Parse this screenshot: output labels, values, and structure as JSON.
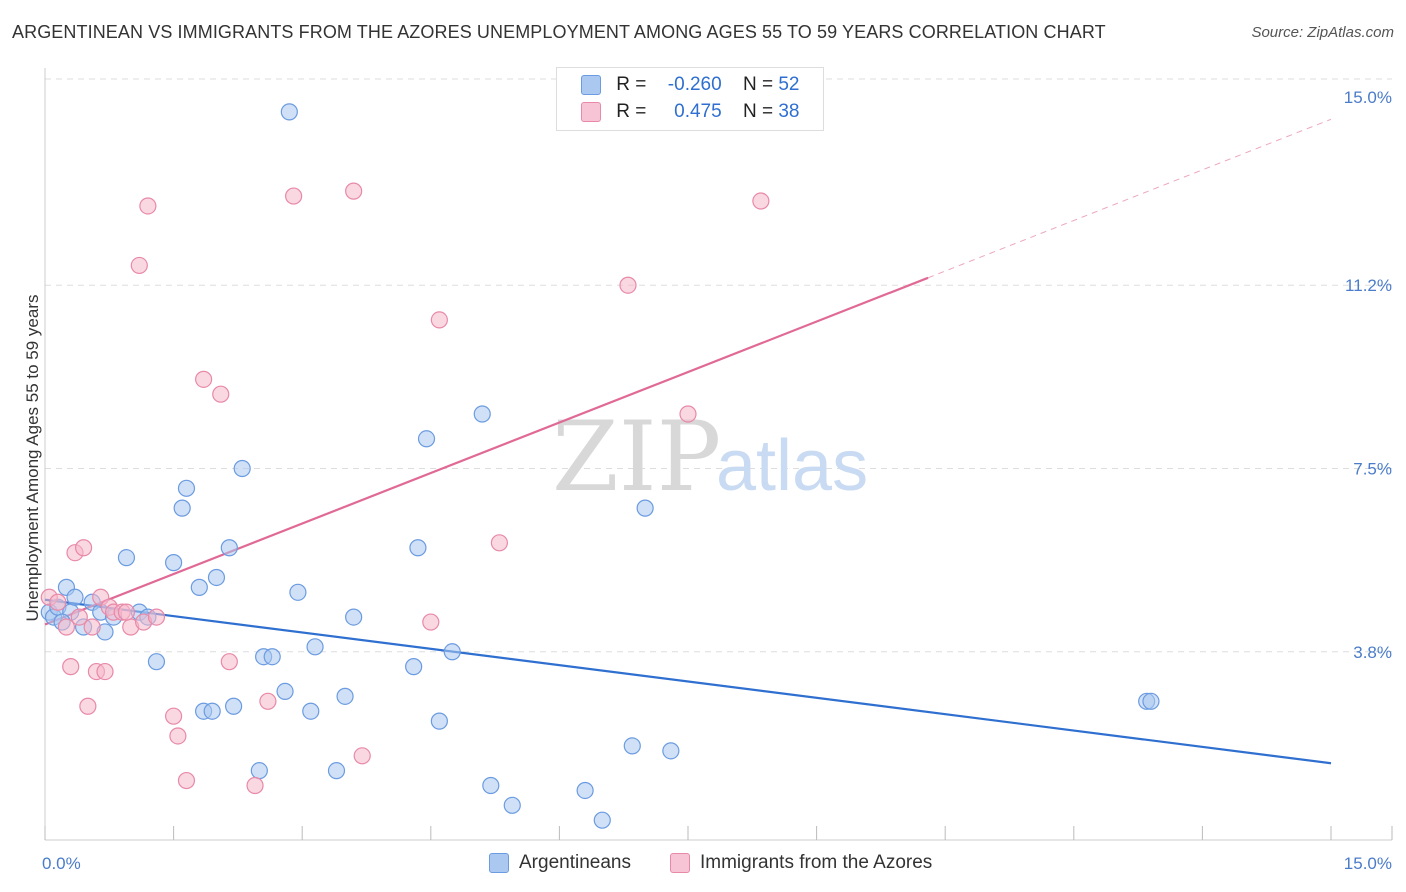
{
  "title": "ARGENTINEAN VS IMMIGRANTS FROM THE AZORES UNEMPLOYMENT AMONG AGES 55 TO 59 YEARS CORRELATION CHART",
  "source": "Source: ZipAtlas.com",
  "watermark": {
    "zip": "ZIP",
    "atlas": "atlas"
  },
  "legend_top": {
    "rows": [
      {
        "r_label": "R =",
        "r_value": "-0.260",
        "n_label": "N =",
        "n_value": "52"
      },
      {
        "r_label": "R =",
        "r_value": "0.475",
        "n_label": "N =",
        "n_value": "38"
      }
    ]
  },
  "legend_bottom": {
    "items": [
      "Argentineans",
      "Immigrants from the Azores"
    ]
  },
  "colors": {
    "blue_fill": "#aac8f0",
    "blue_stroke": "#6b9be0",
    "blue_line": "#2f6fd0",
    "pink_fill": "#f6b8cb",
    "pink_stroke": "#e889a8",
    "pink_line": "#e06a95",
    "grid": "#dddddd",
    "tick_text": "#4a7cc9"
  },
  "chart_data": {
    "type": "scatter",
    "title": "ARGENTINEAN VS IMMIGRANTS FROM THE AZORES UNEMPLOYMENT AMONG AGES 55 TO 59 YEARS CORRELATION CHART",
    "xlabel": "",
    "ylabel": "Unemployment Among Ages 55 to 59 years",
    "xlim": [
      0,
      15
    ],
    "ylim": [
      0,
      15.5
    ],
    "x_tick_labels": [
      {
        "value": 0,
        "label": "0.0%"
      },
      {
        "value": 15,
        "label": "15.0%"
      }
    ],
    "y_tick_labels": [
      {
        "value": 3.8,
        "label": "3.8%"
      },
      {
        "value": 7.5,
        "label": "7.5%"
      },
      {
        "value": 11.2,
        "label": "11.2%"
      },
      {
        "value": 15.0,
        "label": "15.0%"
      }
    ],
    "series": [
      {
        "name": "Argentineans",
        "color": "blue",
        "r": -0.26,
        "n": 52,
        "points": [
          [
            0.05,
            4.6
          ],
          [
            0.1,
            4.5
          ],
          [
            0.15,
            4.7
          ],
          [
            0.25,
            5.1
          ],
          [
            0.3,
            4.6
          ],
          [
            0.45,
            4.3
          ],
          [
            0.55,
            4.8
          ],
          [
            0.65,
            4.6
          ],
          [
            0.7,
            4.2
          ],
          [
            0.8,
            4.5
          ],
          [
            0.95,
            5.7
          ],
          [
            1.1,
            4.6
          ],
          [
            1.2,
            4.5
          ],
          [
            1.3,
            3.6
          ],
          [
            1.5,
            5.6
          ],
          [
            1.6,
            6.7
          ],
          [
            1.65,
            7.1
          ],
          [
            1.8,
            5.1
          ],
          [
            1.85,
            2.6
          ],
          [
            1.95,
            2.6
          ],
          [
            2.0,
            5.3
          ],
          [
            2.15,
            5.9
          ],
          [
            2.2,
            2.7
          ],
          [
            2.3,
            7.5
          ],
          [
            2.5,
            1.4
          ],
          [
            2.55,
            3.7
          ],
          [
            2.65,
            3.7
          ],
          [
            2.8,
            3.0
          ],
          [
            2.85,
            14.7
          ],
          [
            2.95,
            5.0
          ],
          [
            3.1,
            2.6
          ],
          [
            3.15,
            3.9
          ],
          [
            3.4,
            1.4
          ],
          [
            3.5,
            2.9
          ],
          [
            3.6,
            4.5
          ],
          [
            4.3,
            3.5
          ],
          [
            4.35,
            5.9
          ],
          [
            4.45,
            8.1
          ],
          [
            4.6,
            2.4
          ],
          [
            4.75,
            3.8
          ],
          [
            5.1,
            8.6
          ],
          [
            5.2,
            1.1
          ],
          [
            5.45,
            0.7
          ],
          [
            6.3,
            1.0
          ],
          [
            6.5,
            0.4
          ],
          [
            6.85,
            1.9
          ],
          [
            7.0,
            6.7
          ],
          [
            7.3,
            1.8
          ],
          [
            12.85,
            2.8
          ],
          [
            12.9,
            2.8
          ],
          [
            0.35,
            4.9
          ],
          [
            0.2,
            4.4
          ]
        ]
      },
      {
        "name": "Immigrants from the Azores",
        "color": "pink",
        "r": 0.475,
        "n": 38,
        "points": [
          [
            0.05,
            4.9
          ],
          [
            0.15,
            4.8
          ],
          [
            0.25,
            4.3
          ],
          [
            0.35,
            5.8
          ],
          [
            0.45,
            5.9
          ],
          [
            0.5,
            2.7
          ],
          [
            0.55,
            4.3
          ],
          [
            0.6,
            3.4
          ],
          [
            0.65,
            4.9
          ],
          [
            0.7,
            3.4
          ],
          [
            0.75,
            4.7
          ],
          [
            0.8,
            4.6
          ],
          [
            0.9,
            4.6
          ],
          [
            1.0,
            4.3
          ],
          [
            1.15,
            4.4
          ],
          [
            1.3,
            4.5
          ],
          [
            1.5,
            2.5
          ],
          [
            1.55,
            2.1
          ],
          [
            1.65,
            1.2
          ],
          [
            1.85,
            9.3
          ],
          [
            2.05,
            9.0
          ],
          [
            2.15,
            3.6
          ],
          [
            2.45,
            1.1
          ],
          [
            2.6,
            2.8
          ],
          [
            2.9,
            13.0
          ],
          [
            3.6,
            13.1
          ],
          [
            3.7,
            1.7
          ],
          [
            4.5,
            4.4
          ],
          [
            4.6,
            10.5
          ],
          [
            5.3,
            6.0
          ],
          [
            6.8,
            11.2
          ],
          [
            7.5,
            8.6
          ],
          [
            8.35,
            12.9
          ],
          [
            0.3,
            3.5
          ],
          [
            1.2,
            12.8
          ],
          [
            1.1,
            11.6
          ],
          [
            0.4,
            4.5
          ],
          [
            0.95,
            4.6
          ]
        ]
      }
    ],
    "trend_lines": [
      {
        "series": "Argentineans",
        "x": [
          0,
          15
        ],
        "y": [
          4.85,
          1.55
        ],
        "style": "solid"
      },
      {
        "series": "Immigrants from the Azores",
        "x": [
          0,
          10.3
        ],
        "y": [
          4.35,
          11.35
        ],
        "style": "solid"
      },
      {
        "series": "Immigrants from the Azores",
        "x": [
          10.3,
          15
        ],
        "y": [
          11.35,
          14.55
        ],
        "style": "dashed"
      }
    ],
    "grid": true
  }
}
